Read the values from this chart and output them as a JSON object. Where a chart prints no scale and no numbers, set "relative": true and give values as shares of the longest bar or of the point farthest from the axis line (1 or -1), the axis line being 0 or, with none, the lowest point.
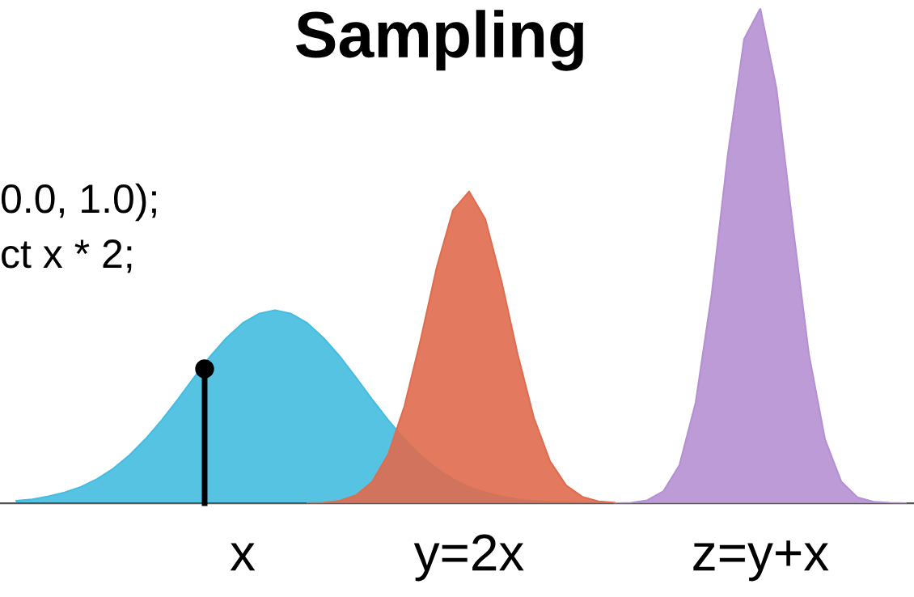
{
  "chart_data": {
    "type": "area",
    "title": "Sampling",
    "relative": true,
    "categories": [
      null,
      null,
      null,
      null,
      null,
      null,
      null,
      null,
      null,
      null,
      null,
      null,
      null,
      null,
      null,
      null,
      null,
      null,
      null,
      null,
      null,
      null,
      null,
      null,
      null,
      null,
      null,
      null,
      null,
      null,
      null,
      null,
      null,
      null,
      null,
      null,
      null,
      null,
      null,
      null,
      null,
      null,
      null,
      null,
      null,
      null,
      null,
      null,
      null,
      null,
      null,
      null,
      null,
      null,
      null,
      null
    ],
    "series": [
      {
        "name": "x",
        "color": "#45bce0",
        "values": [
          0.005,
          0.008,
          0.014,
          0.022,
          0.033,
          0.049,
          0.07,
          0.097,
          0.13,
          0.168,
          0.21,
          0.254,
          0.297,
          0.334,
          0.364,
          0.383,
          0.39,
          0.383,
          0.364,
          0.334,
          0.297,
          0.254,
          0.21,
          0.168,
          0.13,
          0.097,
          0.07,
          0.049,
          0.033,
          0.022,
          0.014,
          0.008,
          0.005,
          0.003,
          0.002,
          0.001,
          0.001,
          0,
          0,
          0,
          null,
          null,
          null,
          null,
          null,
          null,
          null,
          null,
          null,
          null,
          null,
          null,
          null,
          null,
          null,
          null
        ]
      },
      {
        "name": "y=2x",
        "color": "#e06c4e",
        "values": [
          null,
          null,
          null,
          null,
          null,
          null,
          null,
          null,
          null,
          null,
          null,
          null,
          null,
          null,
          null,
          null,
          null,
          null,
          0,
          0.001,
          0.005,
          0.016,
          0.043,
          0.099,
          0.196,
          0.33,
          0.477,
          0.592,
          0.63,
          0.574,
          0.449,
          0.301,
          0.173,
          0.085,
          0.036,
          0.013,
          0.004,
          0.001,
          null,
          null,
          null,
          null,
          null,
          null,
          null,
          null,
          null,
          null,
          null,
          null,
          null,
          null,
          null,
          null,
          null,
          null
        ]
      },
      {
        "name": "z=y+x",
        "color": "#b590d2",
        "values": [
          null,
          null,
          null,
          null,
          null,
          null,
          null,
          null,
          null,
          null,
          null,
          null,
          null,
          null,
          null,
          null,
          null,
          null,
          null,
          null,
          null,
          null,
          null,
          null,
          null,
          null,
          null,
          null,
          null,
          null,
          null,
          null,
          null,
          null,
          null,
          null,
          null,
          0,
          0.001,
          0.006,
          0.024,
          0.077,
          0.203,
          0.424,
          0.707,
          0.938,
          1.0,
          0.838,
          0.563,
          0.302,
          0.129,
          0.044,
          0.012,
          0.003,
          0.001,
          0
        ]
      }
    ],
    "annotations": [
      "0.0, 1.0);",
      "ct x * 2;"
    ]
  }
}
